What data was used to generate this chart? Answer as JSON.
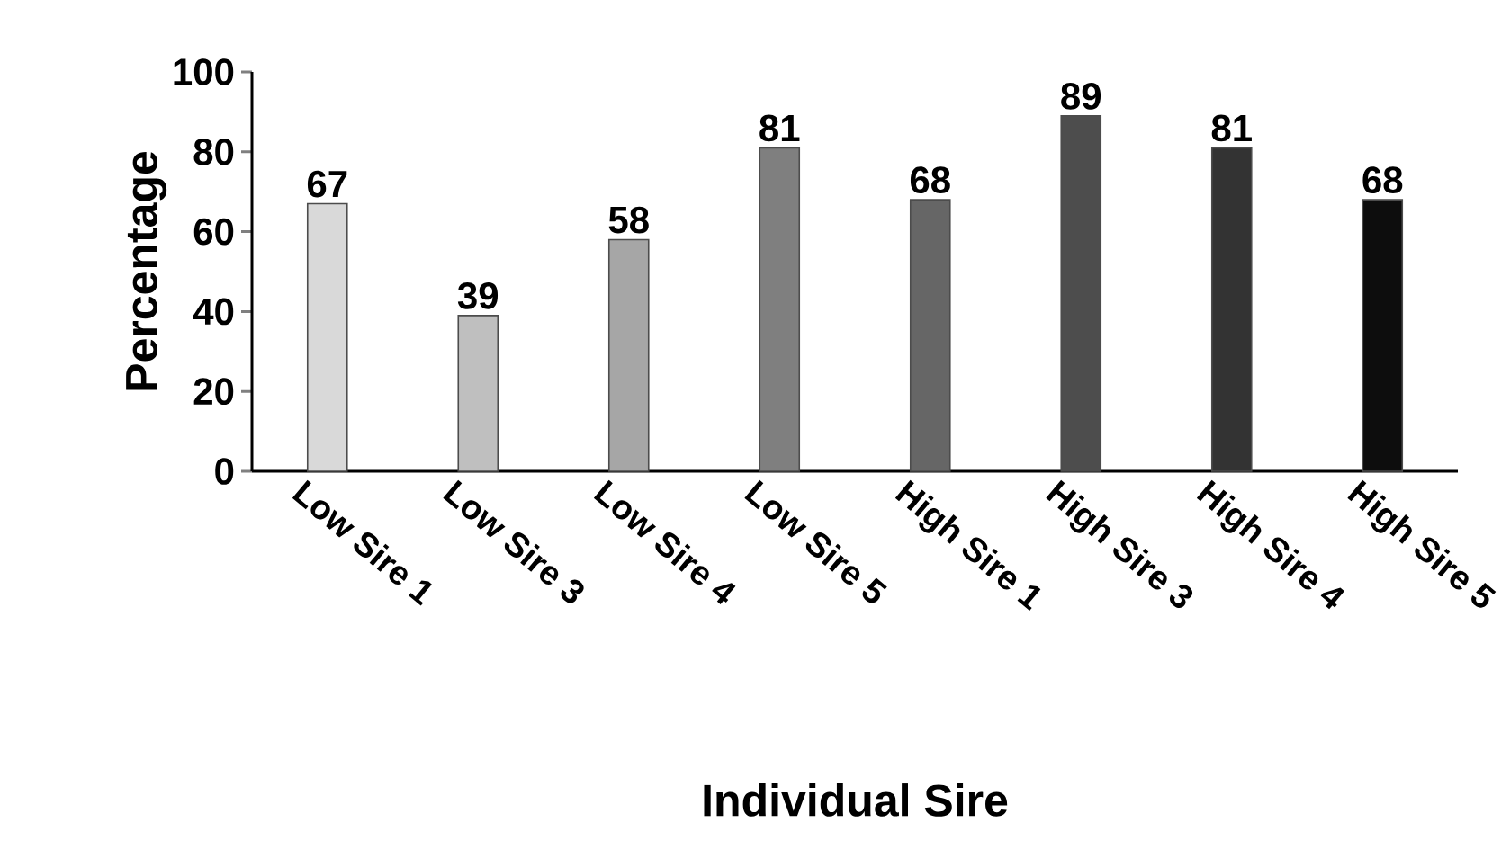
{
  "chart_data": {
    "type": "bar",
    "xlabel": "Individual Sire",
    "ylabel": "Percentage",
    "categories": [
      "Low Sire 1",
      "Low Sire 3",
      "Low Sire 4",
      "Low Sire 5",
      "High Sire 1",
      "High Sire 3",
      "High Sire 4",
      "High Sire 5"
    ],
    "values": [
      67,
      39,
      58,
      81,
      68,
      89,
      81,
      68
    ],
    "colors": [
      "#d9d9d9",
      "#bfbfbf",
      "#a6a6a6",
      "#7f7f7f",
      "#666666",
      "#4d4d4d",
      "#333333",
      "#0d0d0d"
    ],
    "ylim": [
      0,
      100
    ],
    "yticks": [
      0,
      20,
      40,
      60,
      80,
      100
    ],
    "data_labels": true,
    "grid": false
  }
}
